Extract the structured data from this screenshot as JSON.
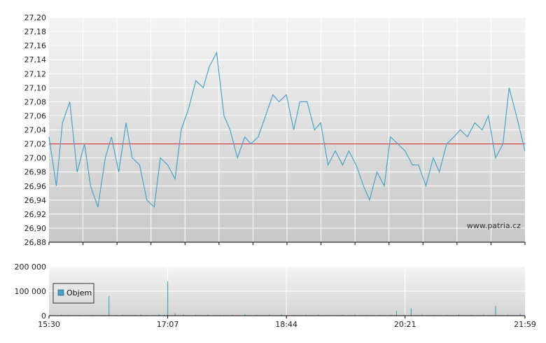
{
  "watermark": "www.patria.cz",
  "legend": {
    "label": "Objem"
  },
  "colors": {
    "price_line": "#4aa3c8",
    "reference_line": "#cc2222",
    "volume": "#4aa3c8",
    "grid": "#ffffff",
    "axis": "#000000"
  },
  "chart_data": [
    {
      "type": "line",
      "ylim": [
        26.88,
        27.2
      ],
      "y_ticks": [
        "27,20",
        "27,18",
        "27,16",
        "27,14",
        "27,12",
        "27,10",
        "27,08",
        "27,06",
        "27,04",
        "27,02",
        "27,00",
        "26,98",
        "26,96",
        "26,94",
        "26,92",
        "26,90",
        "26,88"
      ],
      "x_ticks": [
        "15:30",
        "17:07",
        "18:44",
        "20:21",
        "21:59"
      ],
      "reference_value": 27.02,
      "series": [
        {
          "x": [
            "15:30",
            "15:36",
            "15:41",
            "15:47",
            "15:53",
            "15:59",
            "16:04",
            "16:10",
            "16:16",
            "16:21",
            "16:27",
            "16:33",
            "16:38",
            "16:44",
            "16:50",
            "16:56",
            "17:01",
            "17:07",
            "17:13",
            "17:18",
            "17:24",
            "17:30",
            "17:36",
            "17:41",
            "17:47",
            "17:53",
            "17:58",
            "18:04",
            "18:10",
            "18:15",
            "18:21",
            "18:27",
            "18:33",
            "18:38",
            "18:44",
            "18:50",
            "18:55",
            "19:01",
            "19:07",
            "19:12",
            "19:18",
            "19:24",
            "19:30",
            "19:35",
            "19:41",
            "19:47",
            "19:52",
            "19:58",
            "20:04",
            "20:09",
            "20:15",
            "20:21",
            "20:27",
            "20:32",
            "20:38",
            "20:44",
            "20:49",
            "20:55",
            "21:01",
            "21:06",
            "21:12",
            "21:18",
            "21:24",
            "21:29",
            "21:35",
            "21:41",
            "21:46",
            "21:52",
            "21:59"
          ],
          "values": [
            27.03,
            26.96,
            27.05,
            27.08,
            26.98,
            27.02,
            26.96,
            26.93,
            27.0,
            27.03,
            26.98,
            27.05,
            27.0,
            26.99,
            26.94,
            26.93,
            27.0,
            26.99,
            26.97,
            27.04,
            27.07,
            27.11,
            27.1,
            27.13,
            27.15,
            27.06,
            27.04,
            27.0,
            27.03,
            27.02,
            27.03,
            27.06,
            27.09,
            27.08,
            27.09,
            27.04,
            27.08,
            27.08,
            27.04,
            27.05,
            26.99,
            27.01,
            26.99,
            27.01,
            26.99,
            26.96,
            26.94,
            26.98,
            26.96,
            27.03,
            27.02,
            27.01,
            26.99,
            26.99,
            26.96,
            27.0,
            26.98,
            27.02,
            27.03,
            27.04,
            27.03,
            27.05,
            27.04,
            27.06,
            27.0,
            27.02,
            27.1,
            27.06,
            27.01
          ]
        }
      ]
    },
    {
      "type": "bar",
      "ylim": [
        0,
        200000
      ],
      "y_ticks": [
        "200 000",
        "100 000",
        "0"
      ],
      "x_ticks": [
        "15:30",
        "17:07",
        "18:44",
        "20:21",
        "21:59"
      ],
      "series": [
        {
          "name": "Objem",
          "x": [
            "15:31",
            "15:35",
            "15:40",
            "15:45",
            "15:50",
            "15:55",
            "16:00",
            "16:05",
            "16:10",
            "16:15",
            "16:19",
            "16:25",
            "16:30",
            "16:35",
            "16:40",
            "16:45",
            "16:50",
            "16:55",
            "17:00",
            "17:04",
            "17:07",
            "17:13",
            "17:20",
            "17:30",
            "17:40",
            "17:50",
            "18:00",
            "18:10",
            "18:20",
            "18:30",
            "18:40",
            "18:50",
            "19:00",
            "19:10",
            "19:20",
            "19:30",
            "19:40",
            "19:50",
            "20:00",
            "20:10",
            "20:14",
            "20:20",
            "20:26",
            "20:35",
            "20:45",
            "20:55",
            "21:05",
            "21:15",
            "21:25",
            "21:35",
            "21:45",
            "21:55"
          ],
          "values": [
            3000,
            2000,
            4000,
            3000,
            2000,
            3000,
            2000,
            3000,
            2000,
            1000,
            80000,
            3000,
            4000,
            2000,
            3000,
            5000,
            3000,
            2000,
            6000,
            4000,
            140000,
            10000,
            5000,
            4000,
            6000,
            3000,
            4000,
            6000,
            3000,
            4000,
            5000,
            3000,
            4000,
            5000,
            3000,
            4000,
            6000,
            3000,
            4000,
            3000,
            20000,
            4000,
            30000,
            5000,
            3000,
            4000,
            6000,
            3000,
            5000,
            40000,
            4000,
            8000
          ]
        }
      ]
    }
  ]
}
